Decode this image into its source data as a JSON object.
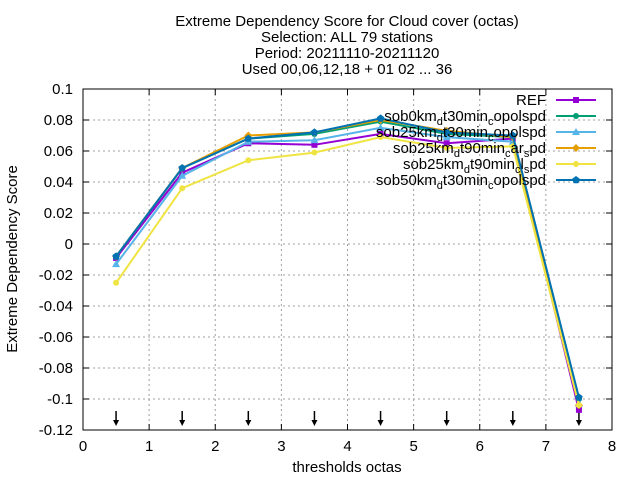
{
  "chart_data": {
    "type": "line",
    "title_lines": [
      "Extreme Dependency Score  for Cloud cover (octas)",
      "Selection: ALL     79 stations",
      "Period: 20211110-20211120",
      "Used 00,06,12,18 + 01 02 ... 36"
    ],
    "xlabel": "thresholds octas",
    "ylabel": "Extreme Dependency Score",
    "xlim": [
      0,
      8
    ],
    "ylim": [
      -0.12,
      0.1
    ],
    "x_ticks": [
      "0",
      "1",
      "2",
      "3",
      "4",
      "5",
      "6",
      "7",
      "8"
    ],
    "y_ticks": [
      "0.1",
      "0.08",
      "0.06",
      "0.04",
      "0.02",
      "0",
      "-0.02",
      "-0.04",
      "-0.06",
      "-0.08",
      "-0.1",
      "-0.12"
    ],
    "grid": true,
    "legend_position": "top-right",
    "x": [
      0.5,
      1.5,
      2.5,
      3.5,
      4.5,
      5.5,
      6.5,
      7.5
    ],
    "arrow_x": [
      0.5,
      1.5,
      2.5,
      3.5,
      4.5,
      5.5,
      6.5,
      7.5
    ],
    "series": [
      {
        "name_parts": [
          [
            "REF",
            ""
          ]
        ],
        "color": "#9400d3",
        "marker": "square",
        "values": [
          -0.009,
          0.046,
          0.065,
          0.064,
          0.071,
          0.065,
          0.068,
          -0.107
        ]
      },
      {
        "name_parts": [
          [
            "sob0km",
            ""
          ],
          [
            "d",
            "sub"
          ],
          [
            "t30min",
            ""
          ],
          [
            "c",
            "sub"
          ],
          [
            "opolspd",
            ""
          ]
        ],
        "color": "#009e73",
        "marker": "circle",
        "values": [
          -0.008,
          0.049,
          0.068,
          0.071,
          0.079,
          0.071,
          0.069,
          -0.1
        ]
      },
      {
        "name_parts": [
          [
            "sob25km",
            ""
          ],
          [
            "d",
            "sub"
          ],
          [
            "t30min",
            ""
          ],
          [
            "c",
            "sub"
          ],
          [
            "opolspd",
            ""
          ]
        ],
        "color": "#56b4e9",
        "marker": "triangle",
        "values": [
          -0.013,
          0.044,
          0.066,
          0.067,
          0.075,
          0.069,
          0.066,
          -0.103
        ]
      },
      {
        "name_parts": [
          [
            "sob25km",
            ""
          ],
          [
            "d",
            "sub"
          ],
          [
            "t90min",
            ""
          ],
          [
            "c",
            "sub"
          ],
          [
            "ar",
            ""
          ],
          [
            "s",
            "sub"
          ],
          [
            "pd",
            ""
          ]
        ],
        "color": "#e69f00",
        "marker": "diamond",
        "values": [
          -0.008,
          0.049,
          0.07,
          0.072,
          0.08,
          0.073,
          0.069,
          -0.104
        ]
      },
      {
        "name_parts": [
          [
            "sob25km",
            ""
          ],
          [
            "d",
            "sub"
          ],
          [
            "t90min",
            ""
          ],
          [
            "c",
            "sub"
          ],
          [
            "l",
            ""
          ],
          [
            "s",
            "sub"
          ],
          [
            "pd",
            ""
          ]
        ],
        "color": "#f0e442",
        "marker": "circle",
        "values": [
          -0.025,
          0.036,
          0.054,
          0.059,
          0.069,
          0.062,
          0.063,
          -0.104
        ]
      },
      {
        "name_parts": [
          [
            "sob50km",
            ""
          ],
          [
            "d",
            "sub"
          ],
          [
            "t30min",
            ""
          ],
          [
            "c",
            "sub"
          ],
          [
            "opolspd",
            ""
          ]
        ],
        "color": "#0072b2",
        "marker": "pentagon",
        "values": [
          -0.008,
          0.049,
          0.068,
          0.072,
          0.081,
          0.072,
          0.07,
          -0.099
        ]
      }
    ]
  }
}
